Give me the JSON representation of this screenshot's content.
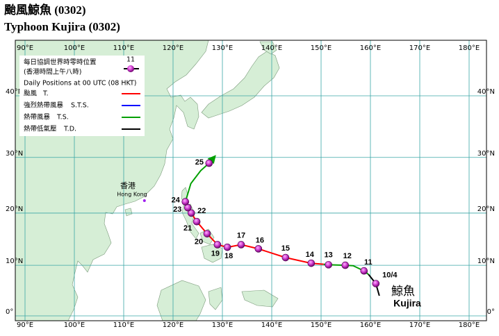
{
  "title_zh": "颱風鯨魚 (0302)",
  "title_en": "Typhoon Kujira (0302)",
  "map": {
    "lon_ticks": [
      {
        "value": 90,
        "label": "90°E"
      },
      {
        "value": 100,
        "label": "100°E"
      },
      {
        "value": 110,
        "label": "110°E"
      },
      {
        "value": 120,
        "label": "120°E"
      },
      {
        "value": 130,
        "label": "130°E"
      },
      {
        "value": 140,
        "label": "140°E"
      },
      {
        "value": 150,
        "label": "150°E"
      },
      {
        "value": 160,
        "label": "160°E"
      },
      {
        "value": 170,
        "label": "170°E"
      },
      {
        "value": 180,
        "label": "180°E"
      }
    ],
    "lat_ticks": [
      {
        "value": 0,
        "label": "0°"
      },
      {
        "value": 10,
        "label": "10°N"
      },
      {
        "value": 20,
        "label": "20°N"
      },
      {
        "value": 30,
        "label": "30°N"
      },
      {
        "value": 40,
        "label": "40°N"
      }
    ]
  },
  "legend": {
    "daily_zh": "每日協調世界時零時位置",
    "daily_hk": "(香港時間上午八時)",
    "sample_label": "11",
    "daily_en": "Daily Positions at 00 UTC (08 HKT)",
    "entries": [
      {
        "zh": "颱風",
        "en": "T.",
        "color": "#ff0000"
      },
      {
        "zh": "強烈熱帶風暴",
        "en": "S.T.S.",
        "color": "#0000ff"
      },
      {
        "zh": "熱帶風暴",
        "en": "T.S.",
        "color": "#00a000"
      },
      {
        "zh": "熱帶低氣壓",
        "en": "T.D.",
        "color": "#000000"
      }
    ]
  },
  "hong_kong": {
    "zh": "香港",
    "en": "Hong Kong",
    "lon": 114.2,
    "lat": 22.3
  },
  "storm_name": {
    "zh": "鯨魚",
    "en": "Kujira"
  },
  "track": {
    "segments": [
      {
        "color": "#000000",
        "lon": [
          161.8,
          161.1,
          159.6
        ],
        "lat": [
          4.0,
          6.4,
          8.2
        ]
      },
      {
        "color": "#00a000",
        "lon": [
          159.6,
          158.7,
          156.5,
          154.9,
          151.5,
          150.5
        ],
        "lat": [
          8.2,
          8.9,
          9.9,
          10.0,
          10.1,
          10.2
        ]
      },
      {
        "color": "#ff0000",
        "lon": [
          150.5,
          148.0,
          142.8,
          137.3,
          133.8,
          131.0,
          129.0,
          126.9,
          124.8,
          123.7,
          123.0,
          122.5
        ],
        "lat": [
          10.2,
          10.4,
          11.5,
          13.2,
          14.0,
          13.5,
          14.0,
          16.1,
          18.4,
          20.0,
          21.0,
          22.1
        ]
      },
      {
        "color": "#00a000",
        "lon": [
          122.5,
          123.6,
          125.6,
          127.3,
          128.5
        ],
        "lat": [
          22.1,
          25.4,
          27.7,
          29.0,
          30.2
        ]
      }
    ],
    "points": [
      {
        "label": "10/4",
        "lon": 161.1,
        "lat": 6.4
      },
      {
        "label": "11",
        "lon": 158.7,
        "lat": 8.9
      },
      {
        "label": "12",
        "lon": 154.9,
        "lat": 10.0
      },
      {
        "label": "13",
        "lon": 151.5,
        "lat": 10.1
      },
      {
        "label": "14",
        "lon": 148.0,
        "lat": 10.4
      },
      {
        "label": "15",
        "lon": 142.8,
        "lat": 11.5
      },
      {
        "label": "16",
        "lon": 137.3,
        "lat": 13.2
      },
      {
        "label": "17",
        "lon": 133.8,
        "lat": 14.0
      },
      {
        "label": "18",
        "lon": 131.0,
        "lat": 13.5
      },
      {
        "label": "19",
        "lon": 129.0,
        "lat": 14.0
      },
      {
        "label": "20",
        "lon": 126.9,
        "lat": 16.1
      },
      {
        "label": "21",
        "lon": 124.8,
        "lat": 18.4
      },
      {
        "label": "22",
        "lon": 123.7,
        "lat": 20.0
      },
      {
        "label": "23",
        "lon": 123.0,
        "lat": 21.0
      },
      {
        "label": "24",
        "lon": 122.5,
        "lat": 22.1
      },
      {
        "label": "25",
        "lon": 127.3,
        "lat": 29.0
      }
    ]
  }
}
